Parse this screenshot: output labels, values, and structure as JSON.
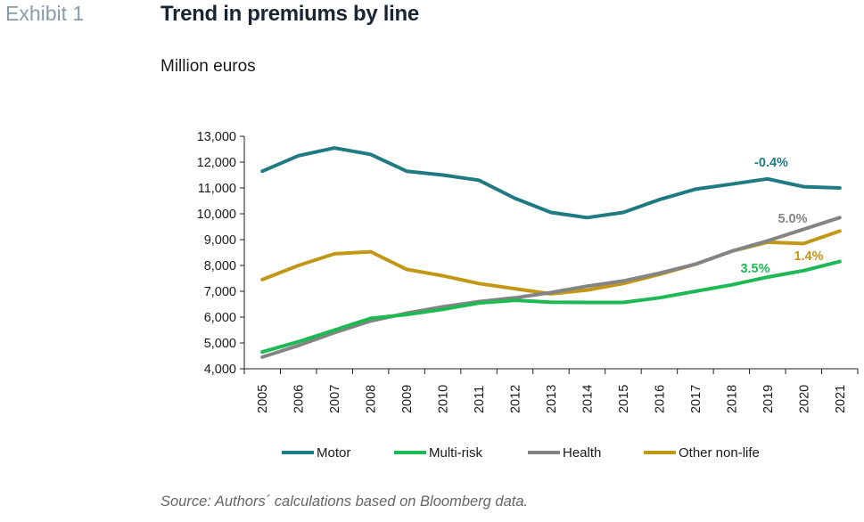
{
  "header": {
    "exhibit_label": "Exhibit 1",
    "title": "Trend in premiums by line"
  },
  "footer": {
    "source": "Source: Authors´ calculations based on Bloomberg data."
  },
  "chart_data": {
    "type": "line",
    "title": "Trend in premiums by line",
    "unit_label": "Million euros",
    "xlabel": "",
    "ylabel": "",
    "ylim": [
      4000,
      13000
    ],
    "yticks": [
      4000,
      5000,
      6000,
      7000,
      8000,
      9000,
      10000,
      11000,
      12000,
      13000
    ],
    "ytick_labels": [
      "4,000",
      "5,000",
      "6,000",
      "7,000",
      "8,000",
      "9,000",
      "10,000",
      "11,000",
      "12,000",
      "13,000"
    ],
    "grid": false,
    "legend_position": "bottom",
    "categories": [
      "2005",
      "2006",
      "2007",
      "2008",
      "2009",
      "2010",
      "2011",
      "2012",
      "2013",
      "2014",
      "2015",
      "2016",
      "2017",
      "2018",
      "2019",
      "2020",
      "2021"
    ],
    "series": [
      {
        "name": "Motor",
        "color": "#1f7a82",
        "values": [
          11650,
          12250,
          12550,
          12300,
          11650,
          11500,
          11300,
          10600,
          10050,
          9850,
          10050,
          10550,
          10950,
          11150,
          11350,
          11050,
          11000
        ],
        "annotation": "-0.4%"
      },
      {
        "name": "Multi-risk",
        "color": "#1db954",
        "values": [
          4650,
          5050,
          5500,
          5950,
          6100,
          6300,
          6550,
          6650,
          6580,
          6570,
          6570,
          6750,
          7000,
          7250,
          7550,
          7800,
          8150
        ],
        "annotation": "3.5%"
      },
      {
        "name": "Health",
        "color": "#848484",
        "values": [
          4450,
          4900,
          5400,
          5850,
          6150,
          6400,
          6600,
          6750,
          6950,
          7200,
          7400,
          7700,
          8050,
          8550,
          8950,
          9400,
          9850
        ],
        "annotation": "5.0%"
      },
      {
        "name": "Other non-life",
        "color": "#c39716",
        "values": [
          7450,
          8000,
          8450,
          8530,
          7850,
          7600,
          7300,
          7100,
          6900,
          7050,
          7300,
          7650,
          8050,
          8550,
          8900,
          8850,
          9330
        ],
        "annotation": "1.4%"
      }
    ]
  }
}
